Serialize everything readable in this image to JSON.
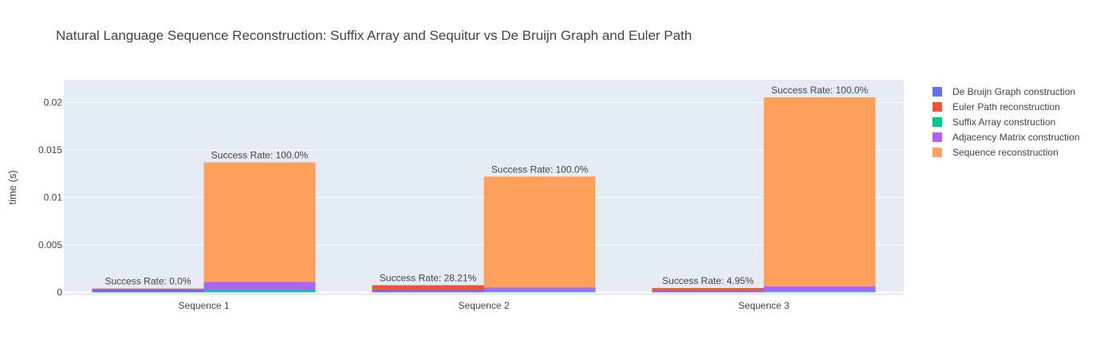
{
  "chart_data": {
    "type": "bar",
    "barmode": "stacked-grouped",
    "title": "Natural Language Sequence Reconstruction: Suffix Array and Sequitur vs De Bruijn Graph and Euler Path",
    "xlabel": "",
    "ylabel": "time (s)",
    "ylim": [
      -0.0003,
      0.0224
    ],
    "y_ticks": [
      0,
      0.005,
      0.01,
      0.015,
      0.02
    ],
    "y_tick_labels": [
      "0",
      "0.005",
      "0.01",
      "0.015",
      "0.02"
    ],
    "grid": true,
    "legend_position": "right",
    "categories": [
      "Sequence 1",
      "Sequence 2",
      "Sequence 3"
    ],
    "groups": [
      {
        "stack": "De Bruijn Graph and Euler Path",
        "series": [
          "De Bruijn Graph construction",
          "Euler Path reconstruction"
        ],
        "success_labels": [
          "Success Rate: 0.0%",
          "Success Rate: 28.21%",
          "Success Rate: 4.95%"
        ]
      },
      {
        "stack": "Suffix Array and Sequitur",
        "series": [
          "Suffix Array construction",
          "Adjacency Matrix construction",
          "Sequence reconstruction"
        ],
        "success_labels": [
          "Success Rate: 100.0%",
          "Success Rate: 100.0%",
          "Success Rate: 100.0%"
        ]
      }
    ],
    "series": [
      {
        "name": "De Bruijn Graph construction",
        "color": "#636efa",
        "group": 0,
        "values": [
          0.0003,
          0.0002,
          0.00015
        ]
      },
      {
        "name": "Euler Path reconstruction",
        "color": "#ef553b",
        "group": 0,
        "values": [
          0.0001,
          0.00055,
          0.0003
        ]
      },
      {
        "name": "Suffix Array construction",
        "color": "#00cc96",
        "group": 1,
        "values": [
          0.00025,
          0.0001,
          0.0001
        ]
      },
      {
        "name": "Adjacency Matrix construction",
        "color": "#ab63fa",
        "group": 1,
        "values": [
          0.00085,
          0.0004,
          0.00055
        ]
      },
      {
        "name": "Sequence reconstruction",
        "color": "#ffa15a",
        "group": 1,
        "values": [
          0.0126,
          0.0117,
          0.0199
        ]
      }
    ]
  }
}
